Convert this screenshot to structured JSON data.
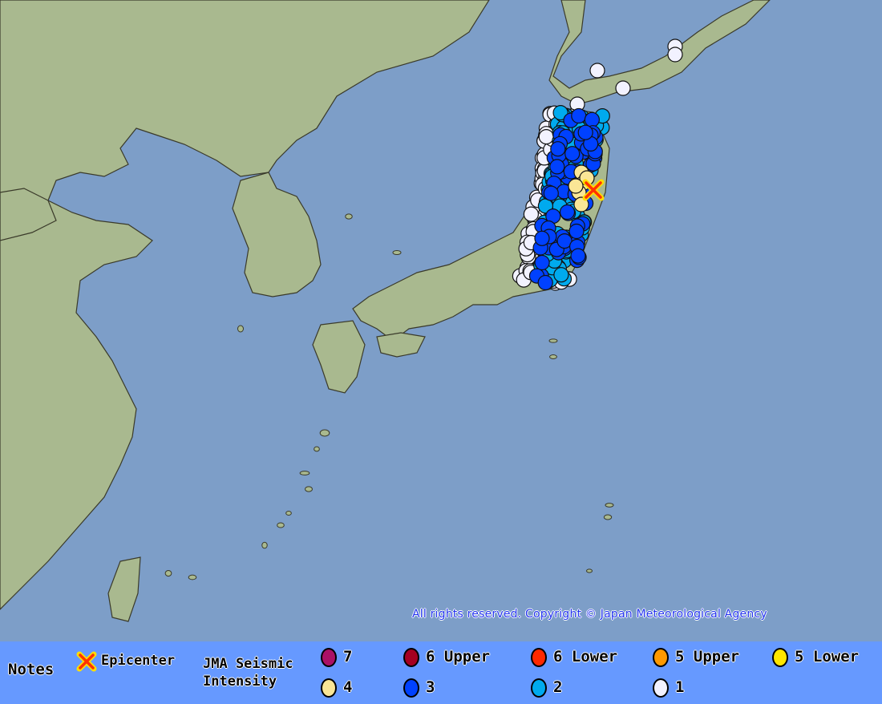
{
  "map": {
    "colors": {
      "sea": "#7d9ec8",
      "land": "#a9b98f",
      "border": "#3a3a2a"
    },
    "epicenter_icon": "x-marker-icon",
    "copyright": "All rights reserved. Copyright © Japan Meteorological Agency"
  },
  "legend": {
    "notes": "Notes",
    "epicenter": "Epicenter",
    "intensity_title_1": "JMA Seismic",
    "intensity_title_2": "Intensity",
    "levels": [
      {
        "label": "7",
        "color": "#aa1166"
      },
      {
        "label": "6 Upper",
        "color": "#a50021"
      },
      {
        "label": "6 Lower",
        "color": "#ff2800"
      },
      {
        "label": "5 Upper",
        "color": "#ff9900"
      },
      {
        "label": "5 Lower",
        "color": "#ffe600"
      },
      {
        "label": "4",
        "color": "#fae696"
      },
      {
        "label": "3",
        "color": "#0041ff"
      },
      {
        "label": "2",
        "color": "#00aaee"
      },
      {
        "label": "1",
        "color": "#f2f2ff"
      }
    ]
  }
}
